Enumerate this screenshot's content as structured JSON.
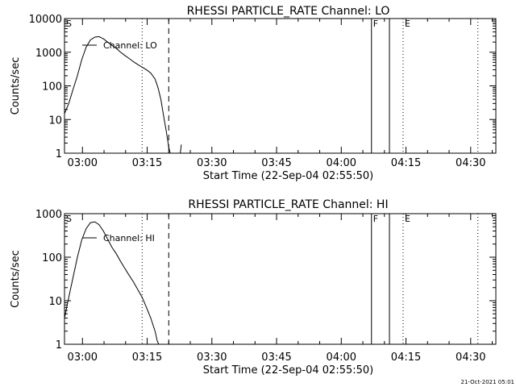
{
  "footer_timestamp": "21-Oct-2021 05:01",
  "colors": {
    "background": "#ffffff",
    "foreground": "#000000"
  },
  "chart_data": [
    {
      "type": "line",
      "title": "RHESSI PARTICLE_RATE Channel: LO",
      "xlabel": "Start Time (22-Sep-04 02:55:50)",
      "ylabel": "Counts/sec",
      "yscale": "log",
      "ylim": [
        1,
        10000
      ],
      "ytick_labels": [
        "1",
        "10",
        "100",
        "1000",
        "10000"
      ],
      "xlim": [
        "02:55:50",
        "04:35:50"
      ],
      "xtick_labels": [
        "03:00",
        "03:15",
        "03:30",
        "03:45",
        "04:00",
        "04:15",
        "04:30"
      ],
      "grid": false,
      "legend": {
        "label": "Channel: LO",
        "position": "upper-left"
      },
      "markers": [
        {
          "label": "S",
          "x": "02:55:50",
          "style": "letter"
        },
        {
          "label": "",
          "x": "03:13:50",
          "style": "dotted"
        },
        {
          "label": "",
          "x": "03:20:00",
          "style": "dashed"
        },
        {
          "label": "F",
          "x": "04:07:00",
          "style": "solid"
        },
        {
          "label": "",
          "x": "04:11:10",
          "style": "solid"
        },
        {
          "label": "E",
          "x": "04:14:20",
          "style": "dotted"
        },
        {
          "label": "",
          "x": "04:31:40",
          "style": "dotted"
        }
      ],
      "series": [
        {
          "name": "Channel: LO",
          "points": [
            [
              "02:55:50",
              15
            ],
            [
              "02:56:50",
              30
            ],
            [
              "02:57:50",
              80
            ],
            [
              "02:58:50",
              200
            ],
            [
              "02:59:50",
              600
            ],
            [
              "03:00:50",
              1400
            ],
            [
              "03:01:50",
              2300
            ],
            [
              "03:02:50",
              2800
            ],
            [
              "03:03:50",
              2900
            ],
            [
              "03:04:50",
              2500
            ],
            [
              "03:05:50",
              2000
            ],
            [
              "03:06:50",
              1600
            ],
            [
              "03:07:50",
              1300
            ],
            [
              "03:08:50",
              1000
            ],
            [
              "03:09:50",
              800
            ],
            [
              "03:10:50",
              650
            ],
            [
              "03:11:50",
              520
            ],
            [
              "03:12:50",
              430
            ],
            [
              "03:13:50",
              360
            ],
            [
              "03:14:50",
              300
            ],
            [
              "03:15:50",
              240
            ],
            [
              "03:16:50",
              160
            ],
            [
              "03:17:30",
              90
            ],
            [
              "03:18:10",
              40
            ],
            [
              "03:18:50",
              12
            ],
            [
              "03:19:30",
              4
            ],
            [
              "03:20:00",
              1.5
            ],
            [
              "03:20:20",
              1
            ]
          ]
        },
        {
          "name": "",
          "points": [
            [
              "03:22:40",
              1
            ],
            [
              "03:22:55",
              1.8
            ]
          ]
        }
      ]
    },
    {
      "type": "line",
      "title": "RHESSI PARTICLE_RATE Channel: HI",
      "xlabel": "Start Time (22-Sep-04 02:55:50)",
      "ylabel": "Counts/sec",
      "yscale": "log",
      "ylim": [
        1,
        1000
      ],
      "ytick_labels": [
        "1",
        "10",
        "100",
        "1000"
      ],
      "xlim": [
        "02:55:50",
        "04:35:50"
      ],
      "xtick_labels": [
        "03:00",
        "03:15",
        "03:30",
        "03:45",
        "04:00",
        "04:15",
        "04:30"
      ],
      "grid": false,
      "legend": {
        "label": "Channel: HI",
        "position": "upper-left"
      },
      "markers": [
        {
          "label": "S",
          "x": "02:55:50",
          "style": "letter"
        },
        {
          "label": "",
          "x": "03:13:50",
          "style": "dotted"
        },
        {
          "label": "",
          "x": "03:20:00",
          "style": "dashed"
        },
        {
          "label": "F",
          "x": "04:07:00",
          "style": "solid"
        },
        {
          "label": "",
          "x": "04:11:10",
          "style": "solid"
        },
        {
          "label": "E",
          "x": "04:14:20",
          "style": "dotted"
        },
        {
          "label": "",
          "x": "04:31:40",
          "style": "dotted"
        }
      ],
      "series": [
        {
          "name": "Channel: HI",
          "points": [
            [
              "02:55:50",
              4
            ],
            [
              "02:56:50",
              12
            ],
            [
              "02:57:50",
              35
            ],
            [
              "02:58:50",
              100
            ],
            [
              "02:59:50",
              250
            ],
            [
              "03:00:50",
              450
            ],
            [
              "03:01:50",
              620
            ],
            [
              "03:02:50",
              650
            ],
            [
              "03:03:50",
              560
            ],
            [
              "03:04:50",
              400
            ],
            [
              "03:05:50",
              260
            ],
            [
              "03:06:50",
              170
            ],
            [
              "03:07:50",
              120
            ],
            [
              "03:08:50",
              80
            ],
            [
              "03:09:50",
              55
            ],
            [
              "03:10:50",
              38
            ],
            [
              "03:11:50",
              27
            ],
            [
              "03:12:50",
              18
            ],
            [
              "03:13:50",
              12
            ],
            [
              "03:14:50",
              7
            ],
            [
              "03:15:50",
              4
            ],
            [
              "03:16:50",
              2
            ],
            [
              "03:17:20",
              1.2
            ],
            [
              "03:17:40",
              1
            ]
          ]
        }
      ]
    }
  ]
}
